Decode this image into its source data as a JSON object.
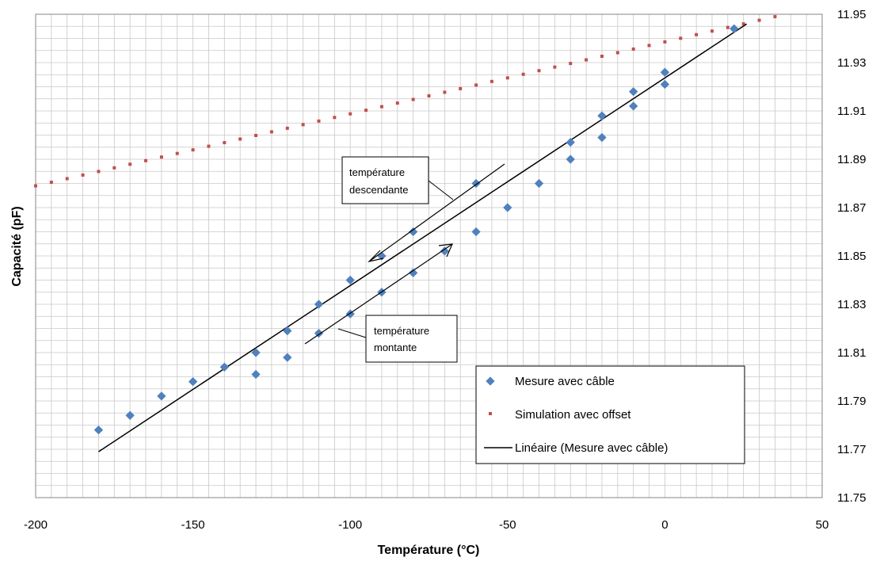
{
  "chart_data": {
    "type": "scatter",
    "xlabel": "Température (°C)",
    "ylabel": "Capacité (pF)",
    "xlim": [
      -200,
      50
    ],
    "ylim": [
      11.75,
      11.95
    ],
    "x_ticks": [
      -200,
      -150,
      -100,
      -50,
      0,
      50
    ],
    "y_ticks": [
      11.75,
      11.77,
      11.79,
      11.81,
      11.83,
      11.85,
      11.87,
      11.89,
      11.91,
      11.93,
      11.95
    ],
    "y_axis_side": "right",
    "grid": true,
    "legend_position": "bottom-right",
    "series": [
      {
        "name": "Mesure avec câble",
        "marker": "diamond",
        "color": "#4F81BD",
        "points": [
          [
            -180,
            11.778
          ],
          [
            -170,
            11.784
          ],
          [
            -160,
            11.792
          ],
          [
            -150,
            11.798
          ],
          [
            -140,
            11.804
          ],
          [
            -130,
            11.81
          ],
          [
            -130,
            11.801
          ],
          [
            -120,
            11.819
          ],
          [
            -120,
            11.808
          ],
          [
            -110,
            11.83
          ],
          [
            -110,
            11.818
          ],
          [
            -100,
            11.84
          ],
          [
            -100,
            11.826
          ],
          [
            -90,
            11.85
          ],
          [
            -90,
            11.835
          ],
          [
            -80,
            11.86
          ],
          [
            -80,
            11.843
          ],
          [
            -70,
            11.852
          ],
          [
            -60,
            11.88
          ],
          [
            -60,
            11.86
          ],
          [
            -50,
            11.87
          ],
          [
            -40,
            11.88
          ],
          [
            -30,
            11.897
          ],
          [
            -30,
            11.89
          ],
          [
            -20,
            11.908
          ],
          [
            -20,
            11.899
          ],
          [
            -10,
            11.918
          ],
          [
            -10,
            11.912
          ],
          [
            0,
            11.926
          ],
          [
            0,
            11.921
          ],
          [
            22,
            11.944
          ]
        ]
      },
      {
        "name": "Simulation avec offset",
        "marker": "square-dot",
        "color": "#C0504D",
        "x_start": -200,
        "x_end": 35,
        "x_step": 5,
        "y_start": 11.879,
        "y_end": 11.949
      },
      {
        "name": "Linéaire (Mesure avec câble)",
        "type": "line",
        "color": "#000000",
        "points": [
          [
            -180,
            11.769
          ],
          [
            26,
            11.946
          ]
        ]
      }
    ],
    "annotations": [
      {
        "lines": [
          "température",
          "descendante"
        ]
      },
      {
        "lines": [
          "température",
          "montante"
        ]
      }
    ]
  }
}
